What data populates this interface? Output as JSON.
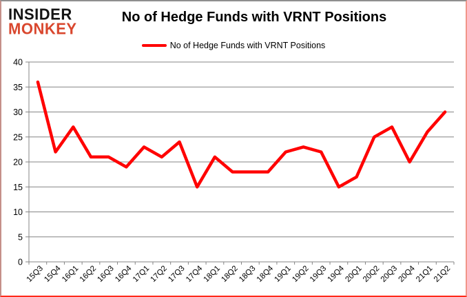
{
  "logo": {
    "line1": "INSIDER",
    "line2": "MONKEY",
    "line1_color": "#141414",
    "line2_color": "#d9472e"
  },
  "header": {
    "title": "No of Hedge Funds with VRNT Positions"
  },
  "legend": {
    "label": "No of Hedge Funds with VRNT Positions",
    "swatch_color": "#ff0000"
  },
  "chart_data": {
    "type": "line",
    "title": "No of Hedge Funds with VRNT Positions",
    "categories": [
      "15Q3",
      "15Q4",
      "16Q1",
      "16Q2",
      "16Q3",
      "16Q4",
      "17Q1",
      "17Q2",
      "17Q3",
      "17Q4",
      "18Q1",
      "18Q2",
      "18Q3",
      "18Q4",
      "19Q1",
      "19Q2",
      "19Q3",
      "19Q4",
      "20Q1",
      "20Q2",
      "20Q3",
      "20Q4",
      "21Q1",
      "21Q2"
    ],
    "series": [
      {
        "name": "No of Hedge Funds with VRNT Positions",
        "color": "#ff0000",
        "values": [
          36,
          22,
          27,
          21,
          21,
          19,
          23,
          21,
          24,
          15,
          21,
          18,
          18,
          18,
          22,
          23,
          22,
          15,
          17,
          25,
          27,
          20,
          26,
          30
        ]
      }
    ],
    "xlabel": "",
    "ylabel": "",
    "ylim": [
      0,
      40
    ],
    "ytick_step": 5,
    "yticks": [
      0,
      5,
      10,
      15,
      20,
      25,
      30,
      35,
      40
    ],
    "grid": "horizontal",
    "grid_color": "#848484",
    "legend_position": "top-center",
    "background": "#ffffff"
  }
}
